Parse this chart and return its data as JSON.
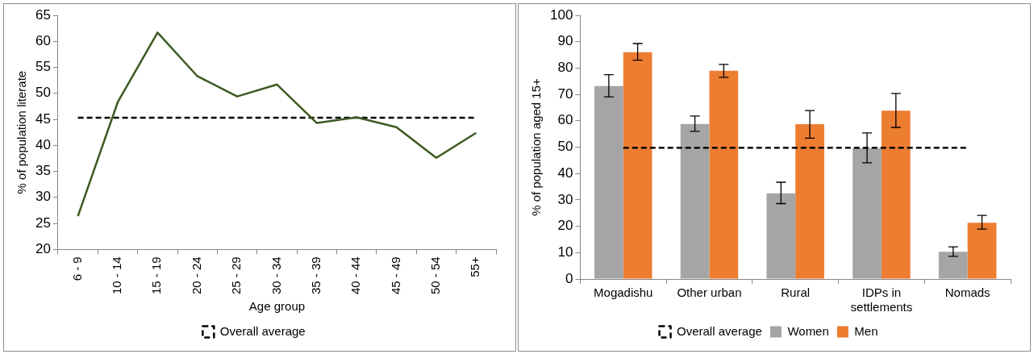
{
  "chart_data": [
    {
      "type": "line",
      "xlabel": "Age group",
      "ylabel": "% of population literate",
      "categories": [
        "6 - 9",
        "10 - 14",
        "15 - 19",
        "20 - 24",
        "25 - 29",
        "30 - 34",
        "35 - 39",
        "40 - 44",
        "45 - 49",
        "50 - 54",
        "55+"
      ],
      "ylim": [
        20,
        65
      ],
      "yticks": [
        20,
        25,
        30,
        35,
        40,
        45,
        50,
        55,
        60,
        65
      ],
      "grid": false,
      "legend": "bottom",
      "marker": "none",
      "series": [
        {
          "color": "#3d5a22",
          "values": [
            26.4,
            48.3,
            61.7,
            53.3,
            49.4,
            51.7,
            44.3,
            45.4,
            43.5,
            37.6,
            42.4
          ]
        },
        {
          "name": "Overall average",
          "color": "#000000",
          "line_style": "dashed",
          "values": [
            45.3,
            45.3,
            45.3,
            45.3,
            45.3,
            45.3,
            45.3,
            45.3,
            45.3,
            45.3,
            45.3
          ]
        }
      ]
    },
    {
      "type": "bar",
      "ylabel": "% of population aged 15+",
      "categories": [
        "Mogadishu",
        "Other urban",
        "Rural",
        "IDPs in settlements",
        "Nomads"
      ],
      "ylim": [
        0,
        100
      ],
      "yticks": [
        0,
        10,
        20,
        30,
        40,
        50,
        60,
        70,
        80,
        90,
        100
      ],
      "grid": false,
      "legend": "bottom",
      "marker": "none",
      "series": [
        {
          "name": "Women",
          "color": "#a5a5a5",
          "values": [
            73.2,
            58.8,
            32.5,
            49.6,
            10.3
          ],
          "errors": [
            [
              69.1,
              77.5
            ],
            [
              56,
              61.8
            ],
            [
              28.6,
              36.7
            ],
            [
              44.1,
              55.4
            ],
            [
              8.6,
              12.2
            ]
          ]
        },
        {
          "name": "Men",
          "color": "#ed7d31",
          "values": [
            86,
            79,
            58.7,
            63.8,
            21.3
          ],
          "errors": [
            [
              83,
              89.3
            ],
            [
              76.5,
              81.4
            ],
            [
              53.4,
              63.9
            ],
            [
              57.5,
              70.4
            ],
            [
              18.9,
              24.1
            ]
          ]
        },
        {
          "name": "Overall average",
          "type": "line",
          "color": "#000000",
          "line_style": "dashed",
          "values": [
            49.8,
            49.8,
            49.8,
            49.8,
            49.8
          ]
        }
      ]
    }
  ]
}
